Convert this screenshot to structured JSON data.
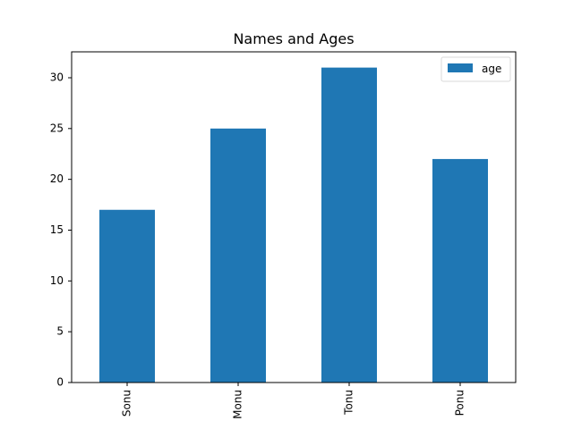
{
  "chart_data": {
    "type": "bar",
    "title": "Names and Ages",
    "xlabel": "",
    "ylabel": "",
    "categories": [
      "Sonu",
      "Monu",
      "Tonu",
      "Ponu"
    ],
    "series": [
      {
        "name": "age",
        "values": [
          17,
          25,
          31,
          22
        ],
        "color": "#1f77b4"
      }
    ],
    "ylim": [
      0,
      32.55
    ],
    "yticks": [
      0,
      5,
      10,
      15,
      20,
      25,
      30
    ],
    "grid": false,
    "legend": {
      "placement": "top-right"
    }
  }
}
